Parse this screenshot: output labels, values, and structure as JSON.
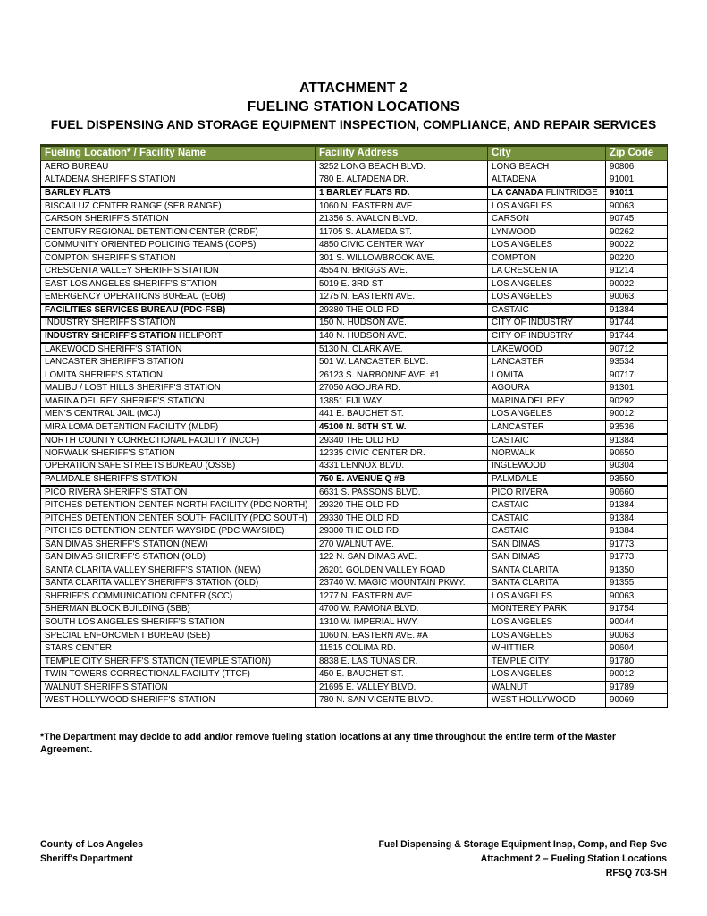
{
  "title": {
    "line1": "ATTACHMENT 2",
    "line2": "FUELING STATION LOCATIONS",
    "line3": "FUEL DISPENSING AND STORAGE EQUIPMENT INSPECTION, COMPLIANCE, AND REPAIR SERVICES"
  },
  "colors": {
    "header_bg": "#76923C",
    "header_text": "#FFFFFF",
    "header_border": "#2F3B12",
    "body_border": "#000000"
  },
  "table": {
    "headers": [
      "Fueling Location* / Facility Name",
      "Facility Address",
      "City",
      "Zip Code"
    ],
    "rows": [
      {
        "cells": [
          "AERO BUREAU",
          "3252 LONG BEACH BLVD.",
          "LONG BEACH",
          "90806"
        ]
      },
      {
        "cells": [
          "ALTADENA SHERIFF'S STATION",
          "780 E. ALTADENA DR.",
          "ALTADENA",
          "91001"
        ]
      },
      {
        "cells": [
          {
            "t": "BARLEY FLATS",
            "b": true
          },
          {
            "t": "1 BARLEY FLATS RD.",
            "b": true
          },
          {
            "parts": [
              {
                "t": "LA CANADA",
                "b": true
              },
              {
                "t": " FLINTRIDGE",
                "b": false
              }
            ]
          },
          {
            "t": "91011",
            "b": true
          }
        ],
        "heavy": true
      },
      {
        "cells": [
          "BISCAILUZ CENTER RANGE (SEB RANGE)",
          "1060 N. EASTERN AVE.",
          "LOS ANGELES",
          "90063"
        ]
      },
      {
        "cells": [
          "CARSON SHERIFF'S STATION",
          "21356 S. AVALON BLVD.",
          "CARSON",
          "90745"
        ]
      },
      {
        "cells": [
          "CENTURY REGIONAL DETENTION CENTER (CRDF)",
          "11705 S. ALAMEDA ST.",
          "LYNWOOD",
          "90262"
        ]
      },
      {
        "cells": [
          "COMMUNITY ORIENTED POLICING TEAMS (COPS)",
          "4850 CIVIC CENTER WAY",
          "LOS ANGELES",
          "90022"
        ]
      },
      {
        "cells": [
          "COMPTON SHERIFF'S STATION",
          "301 S. WILLOWBROOK AVE.",
          "COMPTON",
          "90220"
        ]
      },
      {
        "cells": [
          "CRESCENTA VALLEY SHERIFF'S STATION",
          "4554 N. BRIGGS AVE.",
          "LA CRESCENTA",
          "91214"
        ]
      },
      {
        "cells": [
          "EAST LOS ANGELES SHERIFF'S STATION",
          "5019 E. 3RD ST.",
          "LOS ANGELES",
          "90022"
        ]
      },
      {
        "cells": [
          "EMERGENCY OPERATIONS BUREAU (EOB)",
          "1275 N. EASTERN AVE.",
          "LOS ANGELES",
          "90063"
        ]
      },
      {
        "cells": [
          {
            "t": "FACILITIES SERVICES BUREAU (PDC-FSB)",
            "b": true
          },
          "29380 THE OLD RD.",
          "CASTAIC",
          "91384"
        ],
        "heavy": true
      },
      {
        "cells": [
          "INDUSTRY SHERIFF'S STATION",
          "150 N. HUDSON AVE.",
          "CITY OF INDUSTRY",
          "91744"
        ]
      },
      {
        "cells": [
          {
            "parts": [
              {
                "t": "INDUSTRY SHERIFF'S STATION",
                "b": true
              },
              {
                "t": " HELIPORT",
                "b": false
              }
            ]
          },
          "140 N. HUDSON AVE.",
          "CITY OF INDUSTRY",
          "91744"
        ],
        "heavy": true
      },
      {
        "cells": [
          "LAKEWOOD SHERIFF'S STATION",
          "5130 N. CLARK AVE.",
          "LAKEWOOD",
          "90712"
        ]
      },
      {
        "cells": [
          "LANCASTER SHERIFF'S STATION",
          "501 W. LANCASTER BLVD.",
          "LANCASTER",
          "93534"
        ]
      },
      {
        "cells": [
          "LOMITA SHERIFF'S STATION",
          "26123 S. NARBONNE AVE. #1",
          "LOMITA",
          "90717"
        ]
      },
      {
        "cells": [
          "MALIBU / LOST HILLS SHERIFF'S STATION",
          "27050 AGOURA RD.",
          "AGOURA",
          "91301"
        ]
      },
      {
        "cells": [
          "MARINA DEL REY SHERIFF'S STATION",
          "13851 FIJI WAY",
          "MARINA DEL REY",
          "90292"
        ]
      },
      {
        "cells": [
          "MEN'S CENTRAL JAIL (MCJ)",
          "441 E. BAUCHET ST.",
          "LOS ANGELES",
          "90012"
        ]
      },
      {
        "cells": [
          "MIRA LOMA DETENTION FACILITY (MLDF)",
          {
            "t": "45100 N. 60TH ST. W.",
            "b": true
          },
          "LANCASTER",
          "93536"
        ],
        "heavy": true
      },
      {
        "cells": [
          "NORTH COUNTY CORRECTIONAL FACILITY (NCCF)",
          "29340 THE OLD RD.",
          "CASTAIC",
          "91384"
        ]
      },
      {
        "cells": [
          "NORWALK SHERIFF'S STATION",
          "12335 CIVIC CENTER DR.",
          "NORWALK",
          "90650"
        ]
      },
      {
        "cells": [
          "OPERATION SAFE STREETS BUREAU (OSSB)",
          "4331 LENNOX BLVD.",
          "INGLEWOOD",
          "90304"
        ]
      },
      {
        "cells": [
          "PALMDALE SHERIFF'S STATION",
          {
            "t": "750 E. AVENUE Q #B",
            "b": true
          },
          "PALMDALE",
          "93550"
        ],
        "heavy": true
      },
      {
        "cells": [
          "PICO RIVERA SHERIFF'S STATION",
          "6631 S. PASSONS BLVD.",
          "PICO RIVERA",
          "90660"
        ]
      },
      {
        "cells": [
          "PITCHES DETENTION CENTER NORTH FACILITY (PDC NORTH)",
          "29320 THE OLD RD.",
          "CASTAIC",
          "91384"
        ]
      },
      {
        "cells": [
          "PITCHES DETENTION CENTER SOUTH FACILITY (PDC SOUTH)",
          "29330 THE OLD RD.",
          "CASTAIC",
          "91384"
        ]
      },
      {
        "cells": [
          "PITCHES DETENTION CENTER WAYSIDE (PDC WAYSIDE)",
          "29300 THE OLD RD.",
          "CASTAIC",
          "91384"
        ]
      },
      {
        "cells": [
          "SAN DIMAS SHERIFF'S STATION (NEW)",
          "270 WALNUT AVE.",
          "SAN DIMAS",
          "91773"
        ]
      },
      {
        "cells": [
          "SAN DIMAS SHERIFF'S STATION (OLD)",
          "122 N. SAN DIMAS AVE.",
          "SAN DIMAS",
          "91773"
        ]
      },
      {
        "cells": [
          "SANTA CLARITA VALLEY SHERIFF'S STATION (NEW)",
          "26201 GOLDEN VALLEY ROAD",
          "SANTA CLARITA",
          "91350"
        ]
      },
      {
        "cells": [
          "SANTA CLARITA VALLEY SHERIFF'S STATION (OLD)",
          "23740 W. MAGIC MOUNTAIN PKWY.",
          "SANTA CLARITA",
          "91355"
        ]
      },
      {
        "cells": [
          "SHERIFF'S COMMUNICATION CENTER (SCC)",
          "1277 N. EASTERN AVE.",
          "LOS ANGELES",
          "90063"
        ]
      },
      {
        "cells": [
          "SHERMAN BLOCK BUILDING (SBB)",
          "4700 W. RAMONA BLVD.",
          "MONTEREY PARK",
          "91754"
        ]
      },
      {
        "cells": [
          "SOUTH LOS ANGELES SHERIFF'S STATION",
          "1310 W. IMPERIAL HWY.",
          "LOS ANGELES",
          "90044"
        ]
      },
      {
        "cells": [
          "SPECIAL ENFORCMENT BUREAU (SEB)",
          "1060 N. EASTERN AVE. #A",
          "LOS ANGELES",
          "90063"
        ]
      },
      {
        "cells": [
          "STARS CENTER",
          "11515 COLIMA RD.",
          "WHITTIER",
          "90604"
        ]
      },
      {
        "cells": [
          "TEMPLE CITY SHERIFF'S STATION (TEMPLE STATION)",
          "8838 E. LAS TUNAS DR.",
          "TEMPLE CITY",
          "91780"
        ]
      },
      {
        "cells": [
          "TWIN TOWERS CORRECTIONAL FACILITY (TTCF)",
          "450 E. BAUCHET ST.",
          "LOS ANGELES",
          "90012"
        ]
      },
      {
        "cells": [
          "WALNUT SHERIFF'S STATION",
          "21695 E. VALLEY BLVD.",
          "WALNUT",
          "91789"
        ]
      },
      {
        "cells": [
          "WEST HOLLYWOOD SHERIFF'S STATION",
          "780 N. SAN VICENTE BLVD.",
          "WEST HOLLYWOOD",
          "90069"
        ]
      }
    ]
  },
  "footnote": "*The Department may decide to add and/or remove fueling station locations at any time throughout the entire term of the Master Agreement.",
  "footer": {
    "left": [
      "County of Los Angeles",
      "Sheriff's Department"
    ],
    "right": [
      "Fuel Dispensing & Storage Equipment Insp, Comp, and Rep Svc",
      "Attachment 2 – Fueling Station Locations",
      "RFSQ 703-SH"
    ]
  }
}
